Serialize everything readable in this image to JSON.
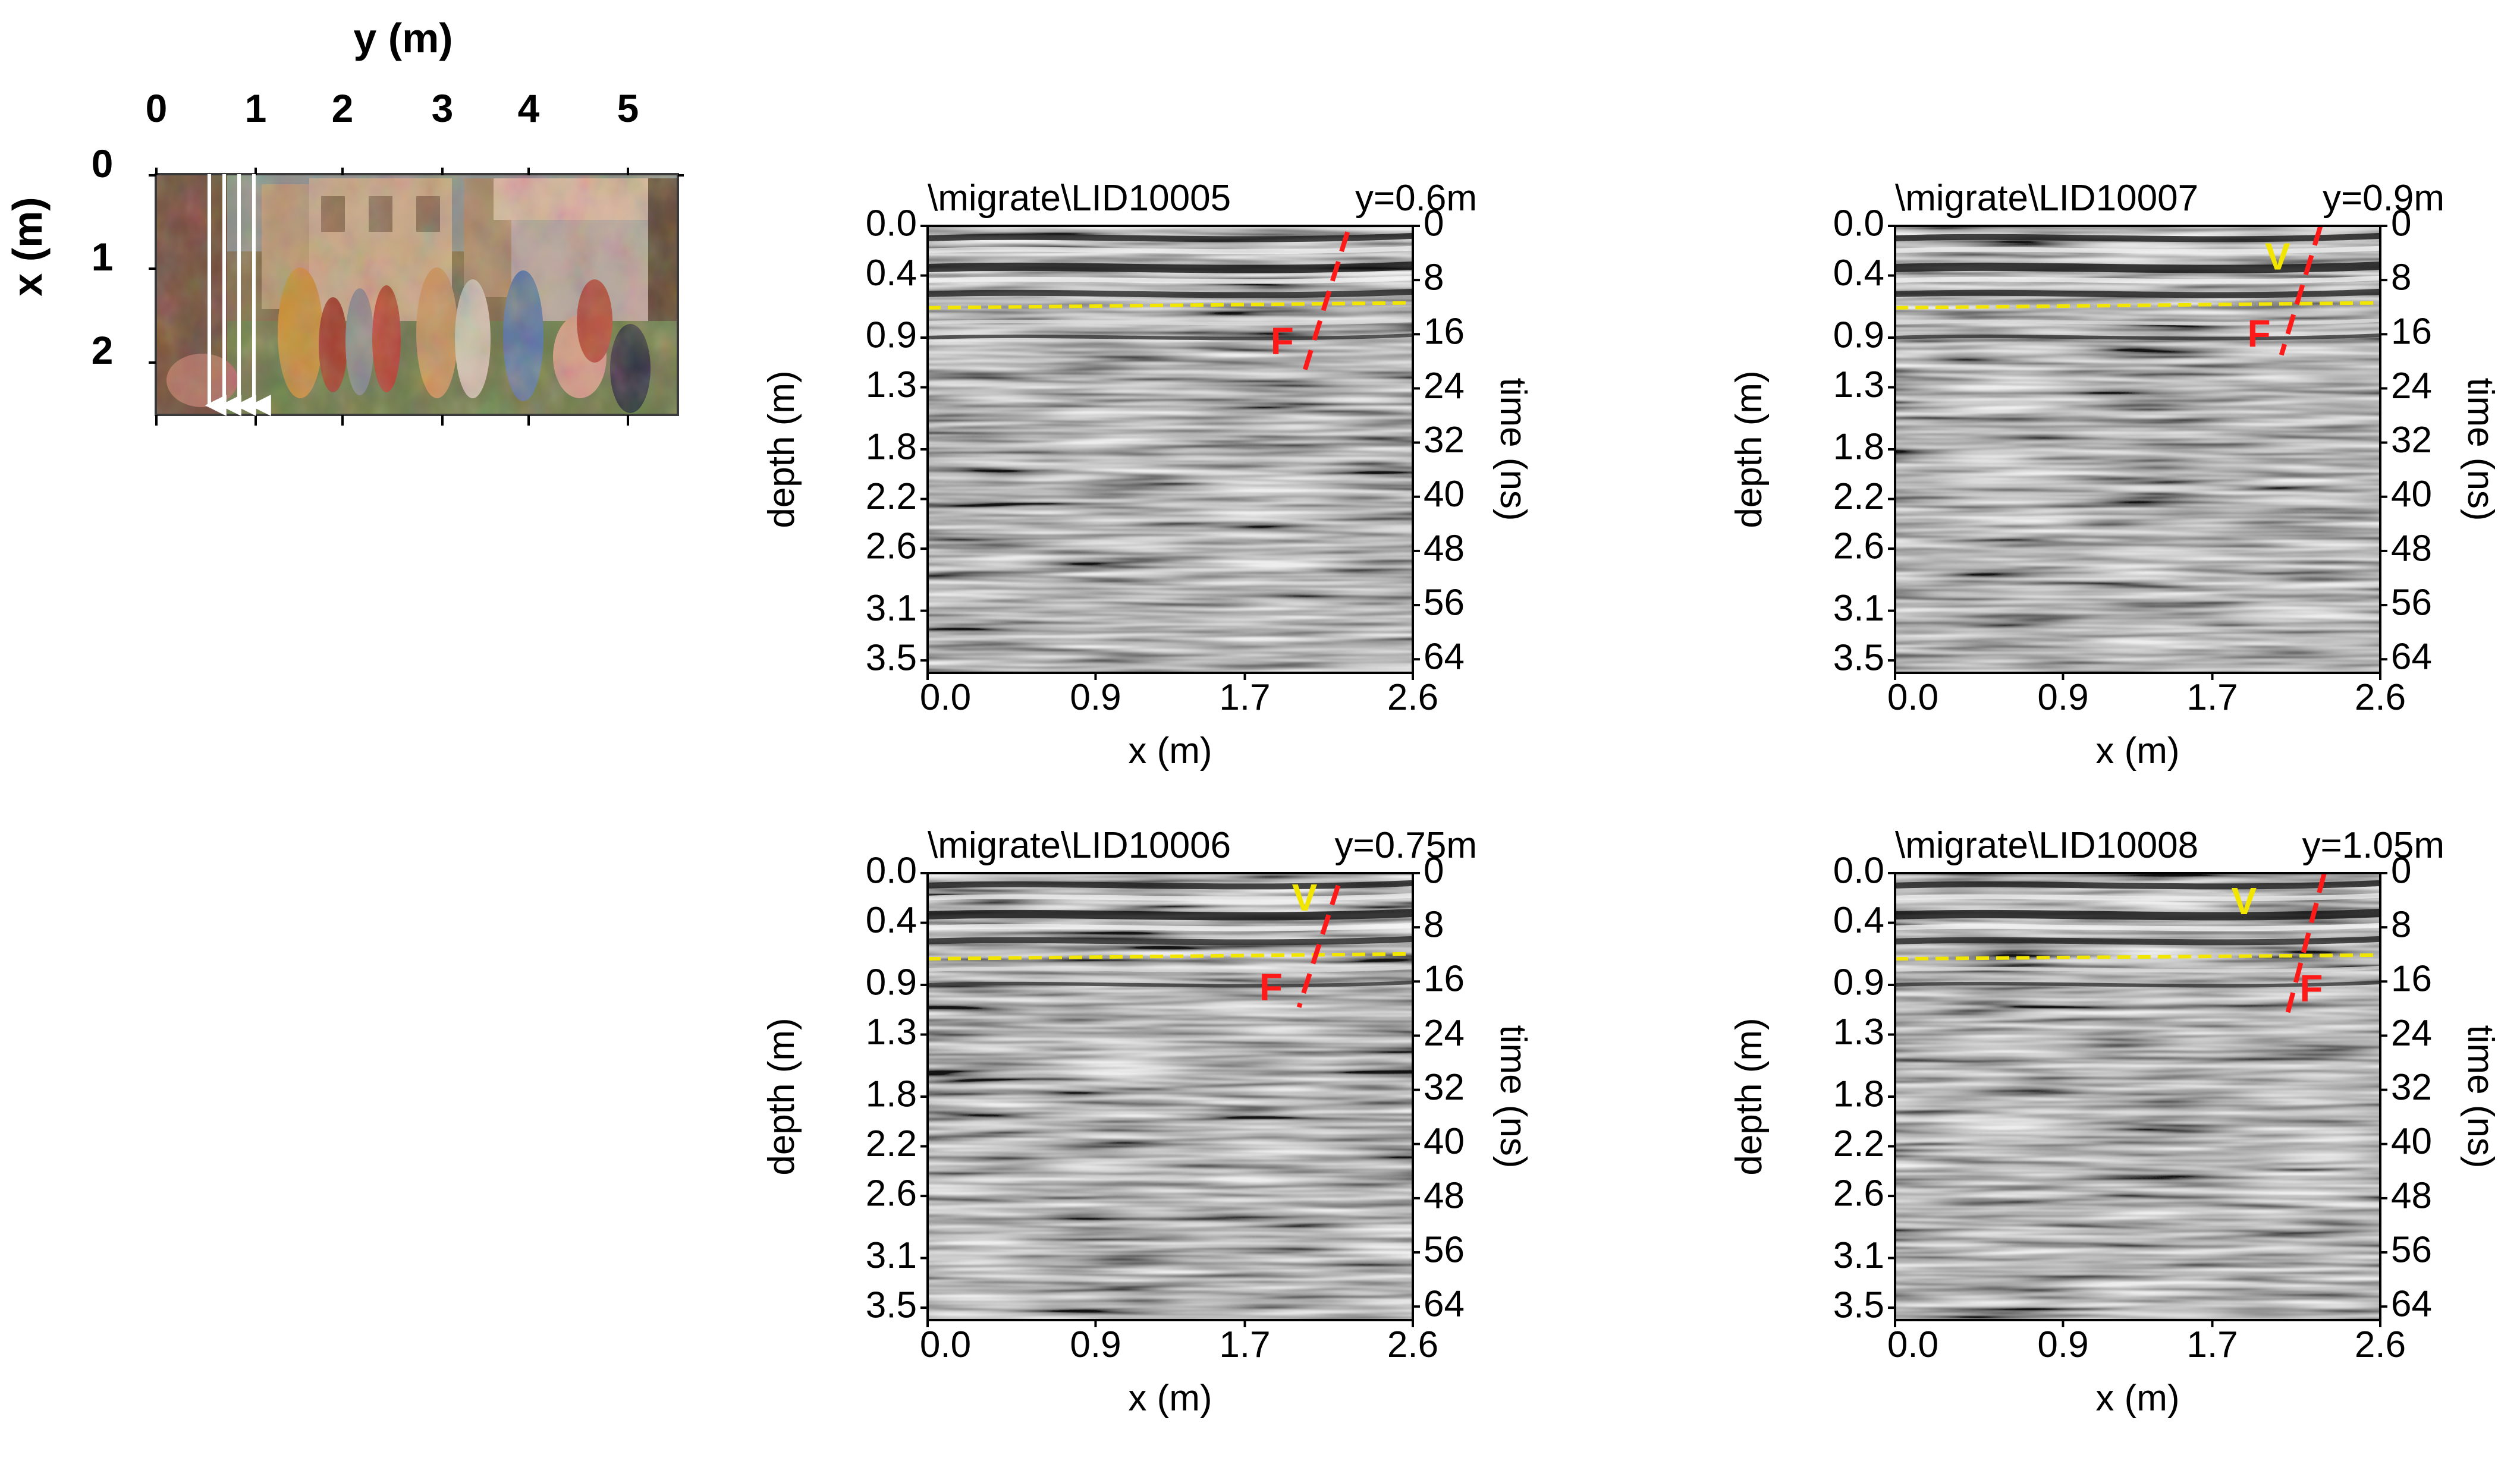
{
  "figure": {
    "map": {
      "y_axis_title": "y (m)",
      "x_axis_title": "x (m)",
      "y_ticks": [
        "0",
        "1",
        "2",
        "3",
        "4",
        "5"
      ],
      "x_ticks": [
        "0",
        "1",
        "2"
      ],
      "profile_arrows_y_m": [
        0.6,
        0.75,
        0.9,
        1.05
      ]
    },
    "colors": {
      "horizon": "#f2e600",
      "fault": "#ff1a1a",
      "arrows": "#ffffff",
      "radargram_bg": "#8a8a8a"
    }
  },
  "chart_data": [
    {
      "type": "heatmap",
      "title": "\\migrate\\LID10005",
      "y_label_text": "y=0.6m",
      "xlabel": "x (m)",
      "ylabel": "depth (m)",
      "y2label": "time (ns)",
      "x_ticks": [
        "0.0",
        "0.9",
        "1.7",
        "2.6"
      ],
      "depth_ticks": [
        "0.0",
        "0.4",
        "0.9",
        "1.3",
        "1.8",
        "2.2",
        "2.6",
        "3.1",
        "3.5"
      ],
      "time_ticks": [
        "0",
        "8",
        "16",
        "24",
        "32",
        "40",
        "48",
        "56",
        "64"
      ],
      "xlim": [
        0,
        2.6
      ],
      "depth_lim": [
        0,
        3.6
      ],
      "time_lim": [
        0,
        66
      ],
      "horizon_depth": [
        [
          0.0,
          0.66
        ],
        [
          2.6,
          0.62
        ]
      ],
      "fault_line": [
        [
          2.25,
          0.05
        ],
        [
          2.02,
          1.17
        ]
      ],
      "annotations": [
        {
          "text": "F",
          "x": 1.9,
          "depth": 0.95,
          "color": "red"
        }
      ]
    },
    {
      "type": "heatmap",
      "title": "\\migrate\\LID10007",
      "y_label_text": "y=0.9m",
      "xlabel": "x (m)",
      "ylabel": "depth (m)",
      "y2label": "time (ns)",
      "x_ticks": [
        "0.0",
        "0.9",
        "1.7",
        "2.6"
      ],
      "depth_ticks": [
        "0.0",
        "0.4",
        "0.9",
        "1.3",
        "1.8",
        "2.2",
        "2.6",
        "3.1",
        "3.5"
      ],
      "time_ticks": [
        "0",
        "8",
        "16",
        "24",
        "32",
        "40",
        "48",
        "56",
        "64"
      ],
      "xlim": [
        0,
        2.6
      ],
      "depth_lim": [
        0,
        3.6
      ],
      "time_lim": [
        0,
        66
      ],
      "horizon_depth": [
        [
          0.0,
          0.66
        ],
        [
          2.6,
          0.62
        ]
      ],
      "fault_line": [
        [
          2.28,
          0.0
        ],
        [
          2.07,
          1.04
        ]
      ],
      "annotations": [
        {
          "text": "V",
          "x": 2.05,
          "depth": 0.27,
          "color": "yellow"
        },
        {
          "text": "F",
          "x": 1.95,
          "depth": 0.89,
          "color": "red"
        }
      ]
    },
    {
      "type": "heatmap",
      "title": "\\migrate\\LID10006",
      "y_label_text": "y=0.75m",
      "xlabel": "x (m)",
      "ylabel": "depth (m)",
      "y2label": "time (ns)",
      "x_ticks": [
        "0.0",
        "0.9",
        "1.7",
        "2.6"
      ],
      "depth_ticks": [
        "0.0",
        "0.4",
        "0.9",
        "1.3",
        "1.8",
        "2.2",
        "2.6",
        "3.1",
        "3.5"
      ],
      "time_ticks": [
        "0",
        "8",
        "16",
        "24",
        "32",
        "40",
        "48",
        "56",
        "64"
      ],
      "xlim": [
        0,
        2.6
      ],
      "depth_lim": [
        0,
        3.6
      ],
      "time_lim": [
        0,
        66
      ],
      "horizon_depth": [
        [
          0.0,
          0.69
        ],
        [
          2.6,
          0.65
        ]
      ],
      "fault_line": [
        [
          2.2,
          0.1
        ],
        [
          1.99,
          1.08
        ]
      ],
      "annotations": [
        {
          "text": "V",
          "x": 2.02,
          "depth": 0.22,
          "color": "yellow"
        },
        {
          "text": "F",
          "x": 1.84,
          "depth": 0.94,
          "color": "red"
        }
      ]
    },
    {
      "type": "heatmap",
      "title": "\\migrate\\LID10008",
      "y_label_text": "y=1.05m",
      "xlabel": "x (m)",
      "ylabel": "depth (m)",
      "y2label": "time (ns)",
      "x_ticks": [
        "0.0",
        "0.9",
        "1.7",
        "2.6"
      ],
      "depth_ticks": [
        "0.0",
        "0.4",
        "0.9",
        "1.3",
        "1.8",
        "2.2",
        "2.6",
        "3.1",
        "3.5"
      ],
      "time_ticks": [
        "0",
        "8",
        "16",
        "24",
        "32",
        "40",
        "48",
        "56",
        "64"
      ],
      "xlim": [
        0,
        2.6
      ],
      "depth_lim": [
        0,
        3.6
      ],
      "time_lim": [
        0,
        66
      ],
      "horizon_depth": [
        [
          0.0,
          0.69
        ],
        [
          2.6,
          0.66
        ]
      ],
      "fault_line": [
        [
          2.3,
          0.0
        ],
        [
          2.1,
          1.15
        ]
      ],
      "annotations": [
        {
          "text": "V",
          "x": 1.87,
          "depth": 0.25,
          "color": "yellow"
        },
        {
          "text": "F",
          "x": 2.23,
          "depth": 0.95,
          "color": "red"
        }
      ]
    }
  ]
}
